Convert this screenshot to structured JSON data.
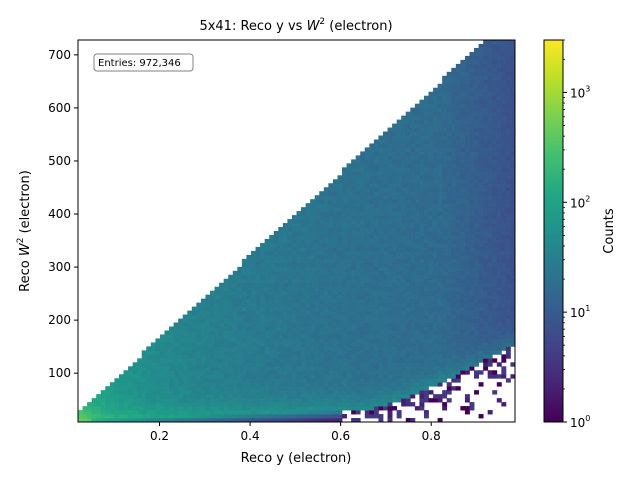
{
  "chart_data": {
    "type": "heatmap",
    "title_main": "5x41: Reco y vs ",
    "title_sym": "W",
    "title_sup": "2",
    "title_tail": " (electron)",
    "xlabel": "Reco y (electron)",
    "ylabel_main": "Reco ",
    "ylabel_sym": "W",
    "ylabel_sup": "2",
    "ylabel_tail": " (electron)",
    "xlim": [
      0.02,
      0.985
    ],
    "ylim": [
      8,
      728
    ],
    "x_ticks": [
      0.2,
      0.4,
      0.6,
      0.8
    ],
    "x_tick_labels": [
      "0.2",
      "0.4",
      "0.6",
      "0.8"
    ],
    "y_ticks": [
      100,
      200,
      300,
      400,
      500,
      600,
      700
    ],
    "y_tick_labels": [
      "100",
      "200",
      "300",
      "400",
      "500",
      "600",
      "700"
    ],
    "annotation": "Entries: 972,346",
    "colorbar": {
      "label": "Counts",
      "scale": "log",
      "range": [
        1,
        3000
      ],
      "colormap": "viridis",
      "ticks": [
        {
          "value": 1,
          "base": "10",
          "exp": "0"
        },
        {
          "value": 10,
          "base": "10",
          "exp": "1"
        },
        {
          "value": 100,
          "base": "10",
          "exp": "2"
        },
        {
          "value": 1000,
          "base": "10",
          "exp": "3"
        }
      ]
    },
    "bins": {
      "nx": 96,
      "ny": 96
    }
  }
}
